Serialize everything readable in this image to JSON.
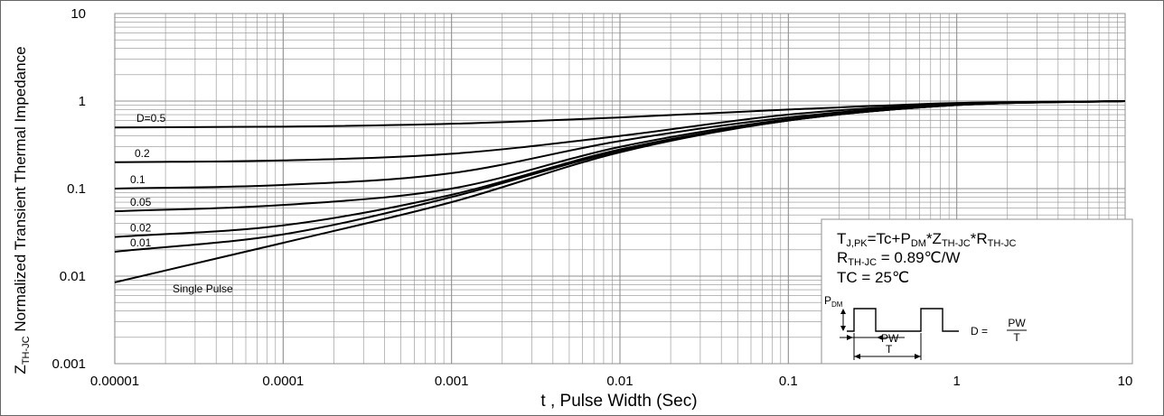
{
  "chart_data": {
    "type": "line",
    "x_scale": "log",
    "y_scale": "log",
    "xlim": [
      1e-05,
      10
    ],
    "ylim": [
      0.001,
      10
    ],
    "x_ticks": [
      {
        "value": 1e-05,
        "label": "0.00001"
      },
      {
        "value": 0.0001,
        "label": "0.0001"
      },
      {
        "value": 0.001,
        "label": "0.001"
      },
      {
        "value": 0.01,
        "label": "0.01"
      },
      {
        "value": 0.1,
        "label": "0.1"
      },
      {
        "value": 1,
        "label": "1"
      },
      {
        "value": 10,
        "label": "10"
      }
    ],
    "y_ticks": [
      {
        "value": 10,
        "label": "10"
      },
      {
        "value": 1,
        "label": "1"
      },
      {
        "value": 0.1,
        "label": "0.1"
      },
      {
        "value": 0.01,
        "label": "0.01"
      },
      {
        "value": 0.001,
        "label": "0.001"
      }
    ],
    "xlabel": "t , Pulse Width (Sec)",
    "ylabel": {
      "main": "Z",
      "sub": "TH-JC",
      "rest": " Normalized Transient Thermal Impedance"
    },
    "grid": true,
    "series": [
      {
        "name": "D=0.5",
        "x": [
          1e-05,
          0.0001,
          0.001,
          0.01,
          0.1,
          1,
          10
        ],
        "y": [
          0.5,
          0.51,
          0.55,
          0.65,
          0.8,
          0.95,
          1.0
        ]
      },
      {
        "name": "0.2",
        "x": [
          1e-05,
          0.0001,
          0.001,
          0.01,
          0.1,
          1,
          10
        ],
        "y": [
          0.2,
          0.21,
          0.25,
          0.4,
          0.7,
          0.93,
          1.0
        ]
      },
      {
        "name": "0.1",
        "x": [
          1e-05,
          0.0001,
          0.001,
          0.01,
          0.1,
          1,
          10
        ],
        "y": [
          0.1,
          0.11,
          0.15,
          0.35,
          0.65,
          0.92,
          1.0
        ]
      },
      {
        "name": "0.05",
        "x": [
          1e-05,
          0.0001,
          0.001,
          0.01,
          0.1,
          1,
          10
        ],
        "y": [
          0.055,
          0.065,
          0.1,
          0.3,
          0.62,
          0.91,
          1.0
        ]
      },
      {
        "name": "0.02",
        "x": [
          1e-05,
          0.0001,
          0.001,
          0.01,
          0.1,
          1,
          10
        ],
        "y": [
          0.028,
          0.038,
          0.085,
          0.28,
          0.6,
          0.9,
          1.0
        ]
      },
      {
        "name": "0.01",
        "x": [
          1e-05,
          0.0001,
          0.001,
          0.01,
          0.1,
          1,
          10
        ],
        "y": [
          0.019,
          0.03,
          0.08,
          0.27,
          0.6,
          0.9,
          1.0
        ]
      },
      {
        "name": "Single Pulse",
        "x": [
          1e-05,
          0.0001,
          0.001,
          0.01,
          0.1,
          1,
          10
        ],
        "y": [
          0.0085,
          0.024,
          0.07,
          0.26,
          0.6,
          0.9,
          1.0
        ]
      }
    ],
    "colors": {
      "curve": "#000000",
      "grid": "#8f8f8f",
      "background": "#ffffff"
    },
    "annotation": {
      "line1": {
        "a": "T",
        "a_sub": "J,PK",
        "b": "=Tc+P",
        "b_sub": "DM",
        "c": "*Z",
        "c_sub": "TH-JC",
        "d": "*R",
        "d_sub": "TH-JC"
      },
      "line2": {
        "a": "R",
        "a_sub": "TH-JC",
        "b": " = 0.89℃/W"
      },
      "line3": "TC = 25℃",
      "pdm": {
        "a": "P",
        "a_sub": "DM"
      },
      "pw": "PW",
      "t": "T",
      "formula_lhs": "D =",
      "formula_num": "PW",
      "formula_den": "T"
    }
  }
}
